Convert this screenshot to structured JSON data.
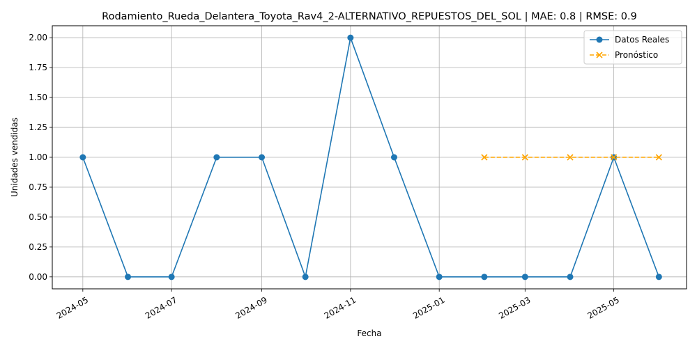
{
  "chart_data": {
    "type": "line",
    "title": "Rodamiento_Rueda_Delantera_Toyota_Rav4_2-ALTERNATIVO_REPUESTOS_DEL_SOL | MAE: 0.8 | RMSE: 0.9",
    "xlabel": "Fecha",
    "ylabel": "Unidades vendidas",
    "xlim": [
      "2024-04-10",
      "2025-06-20"
    ],
    "ylim": [
      -0.1,
      2.1
    ],
    "x_ticks": [
      "2024-05",
      "2024-07",
      "2024-09",
      "2024-11",
      "2025-01",
      "2025-03",
      "2025-05"
    ],
    "y_ticks": [
      "0.00",
      "0.25",
      "0.50",
      "0.75",
      "1.00",
      "1.25",
      "1.50",
      "1.75",
      "2.00"
    ],
    "grid": true,
    "legend_position": "top-right",
    "series": [
      {
        "name": "Datos Reales",
        "color": "#1f77b4",
        "style": "solid",
        "marker": "circle",
        "x": [
          "2024-05-01",
          "2024-06-01",
          "2024-07-01",
          "2024-08-01",
          "2024-09-01",
          "2024-10-01",
          "2024-11-01",
          "2024-12-01",
          "2025-01-01",
          "2025-02-01",
          "2025-03-01",
          "2025-04-01",
          "2025-05-01",
          "2025-06-01"
        ],
        "values": [
          1,
          0,
          0,
          1,
          1,
          0,
          2,
          1,
          0,
          0,
          0,
          0,
          1,
          0
        ]
      },
      {
        "name": "Pronóstico",
        "color": "#ffa500",
        "style": "dashed",
        "marker": "x",
        "x": [
          "2025-02-01",
          "2025-03-01",
          "2025-04-01",
          "2025-05-01",
          "2025-06-01"
        ],
        "values": [
          1,
          1,
          1,
          1,
          1
        ]
      }
    ]
  }
}
